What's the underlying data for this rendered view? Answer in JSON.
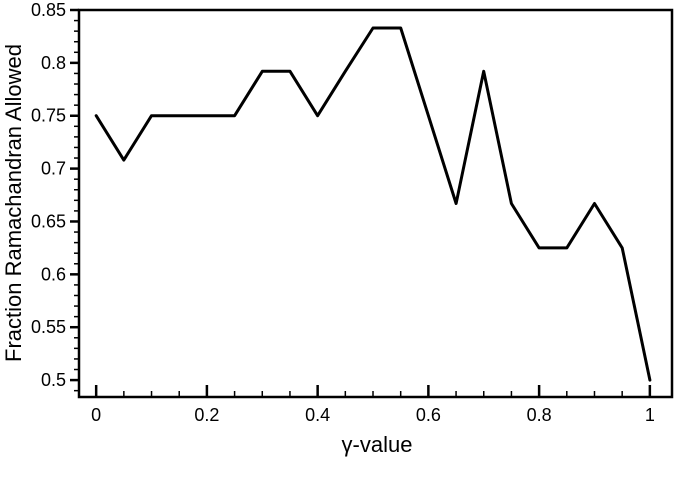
{
  "page": {
    "background": "#ffffff",
    "foreground": "#000000"
  },
  "chart_data": {
    "type": "line",
    "title": "",
    "xlabel": "γ-value",
    "ylabel": "Fraction Ramachandran Allowed",
    "x": [
      0,
      0.05,
      0.1,
      0.15,
      0.2,
      0.25,
      0.3,
      0.35,
      0.4,
      0.45,
      0.5,
      0.55,
      0.6,
      0.65,
      0.7,
      0.75,
      0.8,
      0.85,
      0.9,
      0.95,
      1.0
    ],
    "y": [
      0.75,
      0.708,
      0.75,
      0.75,
      0.75,
      0.75,
      0.792,
      0.792,
      0.75,
      0.792,
      0.833,
      0.833,
      0.75,
      0.667,
      0.792,
      0.667,
      0.625,
      0.625,
      0.667,
      0.625,
      0.5
    ],
    "series": [
      {
        "name": "Fraction Ramachandran Allowed",
        "color": "#000000",
        "line_width": 3
      }
    ],
    "xlim": [
      -0.031,
      1.04
    ],
    "ylim": [
      0.484,
      0.85
    ],
    "x_major_ticks": {
      "values": [
        0,
        0.2,
        0.4,
        0.6,
        0.8,
        1
      ],
      "labels": [
        "0",
        "0.2",
        "0.4",
        "0.6",
        "0.8",
        "1"
      ]
    },
    "x_minor_tick_step": 0.05,
    "y_major_ticks": {
      "values": [
        0.5,
        0.55,
        0.6,
        0.65,
        0.7,
        0.75,
        0.8,
        0.85
      ],
      "labels": [
        "0.5",
        "0.55",
        "0.6",
        "0.65",
        "0.7",
        "0.75",
        "0.8",
        "0.85"
      ]
    },
    "y_minor_tick_step": 0.01,
    "grid": false,
    "legend": false,
    "axis_color": "#000000",
    "line_color": "#000000"
  }
}
